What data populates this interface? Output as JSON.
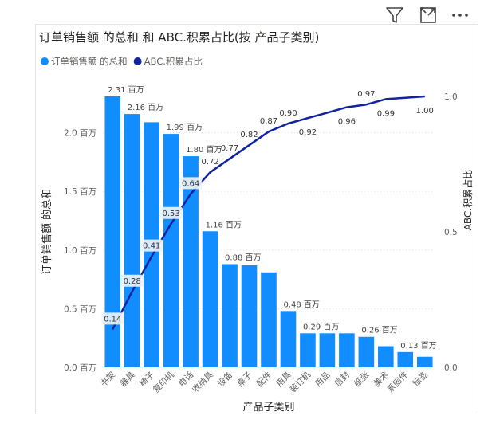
{
  "toolbar": {
    "icons": [
      "filter-icon",
      "focus-mode-icon",
      "more-options-icon"
    ]
  },
  "colors": {
    "bar": "#118DFF",
    "line": "#12239E",
    "line_highlight": "#b9c3e3",
    "axis_text": "#605E5C",
    "title_text": "#252423",
    "grid": "#dddddd",
    "label_box": "#eaf2fb"
  },
  "chart_data": {
    "type": "bar",
    "title": "订单销售额 的总和 和 ABC.积累占比(按 产品子类别)",
    "xlabel": "产品子类别",
    "ylabel": "订单销售额 的总和",
    "y2label": "ABC.积累占比",
    "legend_position": "top-left",
    "grid": true,
    "categories": [
      "书架",
      "器具",
      "椅子",
      "复印机",
      "电话",
      "收纳具",
      "设备",
      "桌子",
      "配件",
      "用具",
      "装订机",
      "用品",
      "信封",
      "纸张",
      "美术",
      "系固件",
      "标签"
    ],
    "ylim": [
      0,
      2.31
    ],
    "y2lim": [
      0,
      1.0
    ],
    "y_ticks": [
      "0.0 百万",
      "0.5 百万",
      "1.0 百万",
      "1.5 百万",
      "2.0 百万"
    ],
    "y2_ticks": [
      "0.0",
      "0.5",
      "1.0"
    ],
    "series": [
      {
        "name": "订单销售额 的总和",
        "type": "bar",
        "axis": "left",
        "values": [
          2.31,
          2.16,
          2.09,
          1.99,
          1.8,
          1.16,
          0.88,
          0.87,
          0.81,
          0.48,
          0.29,
          0.29,
          0.29,
          0.26,
          0.18,
          0.13,
          0.09
        ],
        "labels": [
          "2.31 百万",
          "2.16 百万",
          "",
          "1.99 百万",
          "1.80 百万",
          "1.16 百万",
          "0.88 百万",
          "",
          "",
          "0.48 百万",
          "0.29 百万",
          "",
          "",
          "0.26 百万",
          "",
          "0.13 百万",
          ""
        ]
      },
      {
        "name": "ABC.积累占比",
        "type": "line",
        "axis": "right",
        "values": [
          0.14,
          0.28,
          0.41,
          0.53,
          0.64,
          0.72,
          0.77,
          0.82,
          0.87,
          0.9,
          0.92,
          0.94,
          0.96,
          0.97,
          0.99,
          0.995,
          1.0
        ],
        "labels": [
          "0.14",
          "0.28",
          "0.41",
          "0.53",
          "0.64",
          "0.72",
          "0.77",
          "0.82",
          "0.87",
          "0.90",
          "0.92",
          "",
          "0.96",
          "0.97",
          "0.99",
          "",
          "1.00"
        ]
      }
    ]
  }
}
